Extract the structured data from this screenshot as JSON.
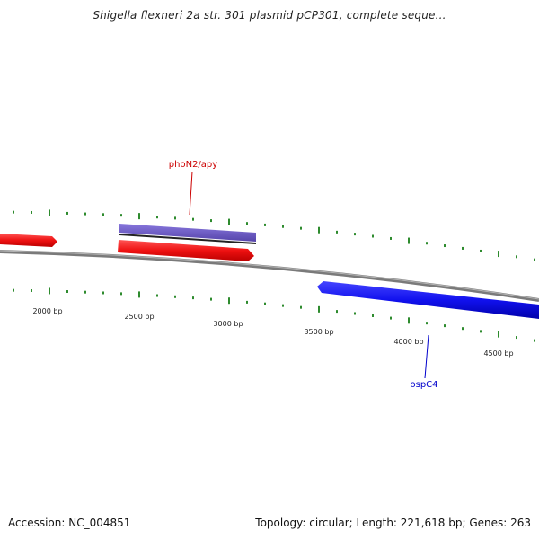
{
  "title": "Shigella flexneri 2a str. 301 plasmid pCP301, complete seque...",
  "footer": {
    "accession": "Accession: NC_004851",
    "summary": "Topology: circular; Length: 221,618 bp; Genes: 263"
  },
  "colors": {
    "backbone": "#8c8c8c",
    "tick": "#2e8b2e",
    "forward_gene": "#ee1111",
    "reverse_gene": "#1111ee",
    "highlight_gene": "#7766cc",
    "label_forward": "#cc0000",
    "label_reverse": "#0000cc"
  },
  "scale_labels": [
    "2000 bp",
    "2500 bp",
    "3000 bp",
    "3500 bp",
    "4000 bp",
    "4500 bp"
  ],
  "genes": [
    {
      "label": "phoN2/apy",
      "strand": "forward",
      "highlighted": true
    },
    {
      "label": "ospC4",
      "strand": "reverse",
      "highlighted": false
    }
  ]
}
